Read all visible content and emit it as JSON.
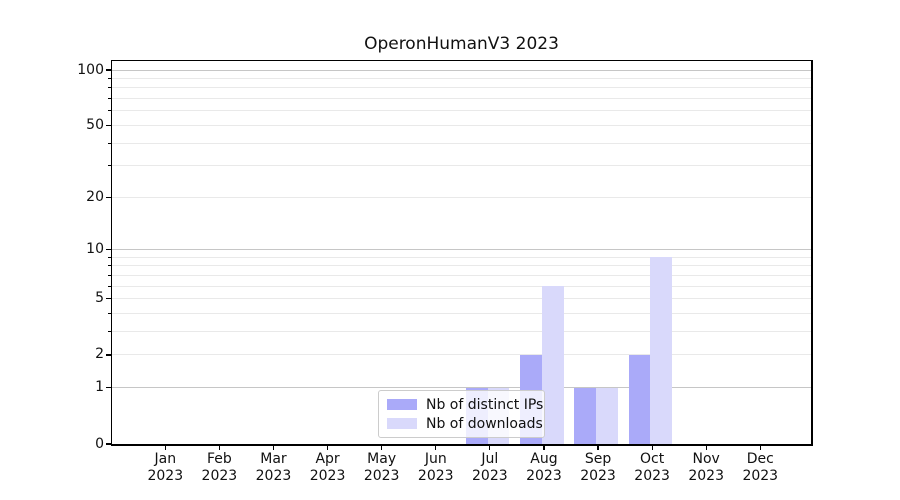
{
  "title": "OperonHumanV3 2023",
  "chart_data": {
    "type": "bar",
    "title": "OperonHumanV3 2023",
    "categories": [
      "Jan",
      "Feb",
      "Mar",
      "Apr",
      "May",
      "Jun",
      "Jul",
      "Aug",
      "Sep",
      "Oct",
      "Nov",
      "Dec"
    ],
    "x_year": "2023",
    "xlabel": "",
    "ylabel": "",
    "yscale": "log1p",
    "ylim": [
      0,
      112
    ],
    "ytick_values": [
      0,
      1,
      2,
      5,
      10,
      20,
      50,
      100
    ],
    "ytick_labels": [
      "0",
      "1",
      "2",
      "5",
      "10",
      "20",
      "50",
      "100"
    ],
    "major_grid_values": [
      1,
      10,
      100
    ],
    "minor_grid_values": [
      2,
      3,
      4,
      5,
      6,
      7,
      8,
      9,
      20,
      30,
      40,
      50,
      60,
      70,
      80,
      90
    ],
    "grid": true,
    "legend_position": "lower-center-inside",
    "series": [
      {
        "name": "Nb of distinct IPs",
        "color": "#aaaaf9",
        "values": [
          0,
          0,
          0,
          0,
          0,
          0,
          1,
          2,
          1,
          2,
          0,
          0
        ]
      },
      {
        "name": "Nb of downloads",
        "color": "#d9d9fb",
        "values": [
          0,
          0,
          0,
          0,
          0,
          0,
          1,
          6,
          1,
          9,
          0,
          0
        ]
      }
    ]
  },
  "colors": {
    "major_grid": "#c6c6c6",
    "minor_grid": "#e9e9e9",
    "axis": "#000000",
    "text": "#111111",
    "legend_border": "#cccccc",
    "bar_distinct_ips": "#aaaaf9",
    "bar_downloads": "#d9d9fb"
  }
}
